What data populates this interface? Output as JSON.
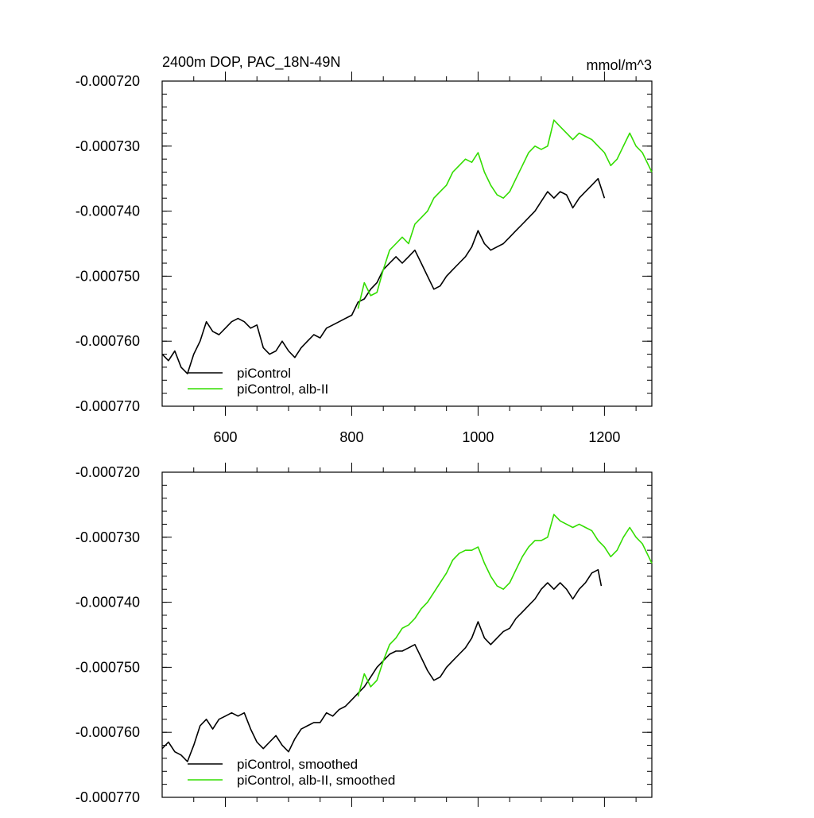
{
  "chart_data": [
    {
      "type": "line",
      "title_left": "2400m DOP, PAC_18N-49N",
      "title_right": "mmol/m^3",
      "xlim": [
        500,
        1275
      ],
      "ylim": [
        -0.00077,
        -0.00072
      ],
      "x_ticks": [
        600,
        800,
        1000,
        1200
      ],
      "x_tick_labels": [
        "600",
        "800",
        "1000",
        "1200"
      ],
      "y_ticks": [
        -0.00072,
        -0.00073,
        -0.00074,
        -0.00075,
        -0.00076,
        -0.00077
      ],
      "y_tick_labels": [
        "-0.000720",
        "-0.000730",
        "-0.000740",
        "-0.000750",
        "-0.000760",
        "-0.000770"
      ],
      "legend_position": "bottom-left",
      "series": [
        {
          "name": "piControl",
          "color": "#000000",
          "x": [
            500,
            510,
            520,
            530,
            540,
            550,
            560,
            570,
            580,
            590,
            600,
            610,
            620,
            630,
            640,
            650,
            660,
            670,
            680,
            690,
            700,
            710,
            720,
            730,
            740,
            750,
            760,
            770,
            780,
            790,
            800,
            810,
            820,
            830,
            840,
            850,
            860,
            870,
            880,
            890,
            900,
            910,
            920,
            930,
            940,
            950,
            960,
            970,
            980,
            990,
            1000,
            1010,
            1020,
            1030,
            1040,
            1050,
            1060,
            1070,
            1080,
            1090,
            1100,
            1110,
            1120,
            1130,
            1140,
            1150,
            1160,
            1170,
            1180,
            1190,
            1200
          ],
          "y": [
            -0.000762,
            -0.000763,
            -0.0007615,
            -0.000764,
            -0.000765,
            -0.000762,
            -0.00076,
            -0.000757,
            -0.0007585,
            -0.000759,
            -0.000758,
            -0.000757,
            -0.0007565,
            -0.000757,
            -0.000758,
            -0.0007575,
            -0.000761,
            -0.000762,
            -0.0007615,
            -0.00076,
            -0.0007615,
            -0.0007625,
            -0.000761,
            -0.00076,
            -0.000759,
            -0.0007595,
            -0.000758,
            -0.0007575,
            -0.000757,
            -0.0007565,
            -0.000756,
            -0.000754,
            -0.0007535,
            -0.000752,
            -0.000751,
            -0.000749,
            -0.000748,
            -0.000747,
            -0.000748,
            -0.000747,
            -0.000746,
            -0.000748,
            -0.00075,
            -0.000752,
            -0.0007515,
            -0.00075,
            -0.000749,
            -0.000748,
            -0.000747,
            -0.0007455,
            -0.000743,
            -0.000745,
            -0.000746,
            -0.0007455,
            -0.000745,
            -0.000744,
            -0.000743,
            -0.000742,
            -0.000741,
            -0.00074,
            -0.0007385,
            -0.000737,
            -0.000738,
            -0.000737,
            -0.0007375,
            -0.0007395,
            -0.000738,
            -0.000737,
            -0.000736,
            -0.000735,
            -0.000738
          ]
        },
        {
          "name": "piControl, alb-II",
          "color": "#33dd00",
          "x": [
            810,
            820,
            830,
            840,
            850,
            860,
            870,
            880,
            890,
            900,
            910,
            920,
            930,
            940,
            950,
            960,
            970,
            980,
            990,
            1000,
            1010,
            1020,
            1030,
            1040,
            1050,
            1060,
            1070,
            1080,
            1090,
            1100,
            1110,
            1120,
            1130,
            1140,
            1150,
            1160,
            1170,
            1180,
            1190,
            1200,
            1210,
            1220,
            1230,
            1240,
            1250,
            1260,
            1270,
            1275
          ],
          "y": [
            -0.000755,
            -0.000751,
            -0.000753,
            -0.0007525,
            -0.000749,
            -0.000746,
            -0.000745,
            -0.000744,
            -0.000745,
            -0.000742,
            -0.000741,
            -0.00074,
            -0.000738,
            -0.000737,
            -0.000736,
            -0.000734,
            -0.000733,
            -0.000732,
            -0.0007325,
            -0.000731,
            -0.000734,
            -0.000736,
            -0.0007375,
            -0.000738,
            -0.000737,
            -0.000735,
            -0.000733,
            -0.000731,
            -0.00073,
            -0.0007305,
            -0.00073,
            -0.000726,
            -0.000727,
            -0.000728,
            -0.000729,
            -0.000728,
            -0.0007285,
            -0.000729,
            -0.00073,
            -0.000731,
            -0.000733,
            -0.000732,
            -0.00073,
            -0.000728,
            -0.00073,
            -0.000731,
            -0.000733,
            -0.000734
          ]
        }
      ]
    },
    {
      "type": "line",
      "xlim": [
        500,
        1275
      ],
      "ylim": [
        -0.00077,
        -0.00072
      ],
      "x_ticks": [
        600,
        800,
        1000,
        1200
      ],
      "y_ticks": [
        -0.00072,
        -0.00073,
        -0.00074,
        -0.00075,
        -0.00076,
        -0.00077
      ],
      "y_tick_labels": [
        "-0.000720",
        "-0.000730",
        "-0.000740",
        "-0.000750",
        "-0.000760",
        "-0.000770"
      ],
      "legend_position": "bottom-left",
      "series": [
        {
          "name": "piControl, smoothed",
          "color": "#000000",
          "x": [
            500,
            510,
            520,
            530,
            540,
            550,
            560,
            570,
            580,
            590,
            600,
            610,
            620,
            630,
            640,
            650,
            660,
            670,
            680,
            690,
            700,
            710,
            720,
            730,
            740,
            750,
            760,
            770,
            780,
            790,
            800,
            810,
            820,
            830,
            840,
            850,
            860,
            870,
            880,
            890,
            900,
            910,
            920,
            930,
            940,
            950,
            960,
            970,
            980,
            990,
            1000,
            1010,
            1020,
            1030,
            1040,
            1050,
            1060,
            1070,
            1080,
            1090,
            1100,
            1110,
            1120,
            1130,
            1140,
            1150,
            1160,
            1170,
            1180,
            1190,
            1195
          ],
          "y": [
            -0.0007625,
            -0.0007615,
            -0.000763,
            -0.0007635,
            -0.0007645,
            -0.000762,
            -0.000759,
            -0.000758,
            -0.0007595,
            -0.000758,
            -0.0007575,
            -0.000757,
            -0.0007575,
            -0.000757,
            -0.0007595,
            -0.0007615,
            -0.0007625,
            -0.0007615,
            -0.0007605,
            -0.000762,
            -0.000763,
            -0.000761,
            -0.0007595,
            -0.000759,
            -0.0007585,
            -0.0007585,
            -0.000757,
            -0.0007575,
            -0.0007565,
            -0.000756,
            -0.000755,
            -0.000754,
            -0.000753,
            -0.0007515,
            -0.00075,
            -0.000749,
            -0.000748,
            -0.0007475,
            -0.0007475,
            -0.000747,
            -0.0007465,
            -0.0007485,
            -0.0007505,
            -0.000752,
            -0.0007515,
            -0.00075,
            -0.000749,
            -0.000748,
            -0.000747,
            -0.0007455,
            -0.000743,
            -0.0007455,
            -0.0007465,
            -0.0007455,
            -0.0007445,
            -0.000744,
            -0.0007425,
            -0.0007415,
            -0.0007405,
            -0.0007395,
            -0.000738,
            -0.000737,
            -0.000738,
            -0.000737,
            -0.000738,
            -0.0007395,
            -0.000738,
            -0.000737,
            -0.0007355,
            -0.000735,
            -0.0007375
          ]
        },
        {
          "name": "piControl, alb-II, smoothed",
          "color": "#33dd00",
          "x": [
            810,
            820,
            830,
            840,
            850,
            860,
            870,
            880,
            890,
            900,
            910,
            920,
            930,
            940,
            950,
            960,
            970,
            980,
            990,
            1000,
            1010,
            1020,
            1030,
            1040,
            1050,
            1060,
            1070,
            1080,
            1090,
            1100,
            1110,
            1120,
            1130,
            1140,
            1150,
            1160,
            1170,
            1180,
            1190,
            1200,
            1210,
            1220,
            1230,
            1240,
            1250,
            1260,
            1270,
            1275
          ],
          "y": [
            -0.0007545,
            -0.000751,
            -0.000753,
            -0.000752,
            -0.000749,
            -0.0007465,
            -0.0007455,
            -0.000744,
            -0.0007435,
            -0.0007425,
            -0.000741,
            -0.00074,
            -0.0007385,
            -0.000737,
            -0.0007355,
            -0.0007335,
            -0.0007325,
            -0.000732,
            -0.000732,
            -0.0007315,
            -0.000734,
            -0.000736,
            -0.0007375,
            -0.000738,
            -0.000737,
            -0.000735,
            -0.000733,
            -0.0007315,
            -0.0007305,
            -0.0007305,
            -0.00073,
            -0.0007265,
            -0.0007275,
            -0.000728,
            -0.0007285,
            -0.000728,
            -0.0007285,
            -0.000729,
            -0.0007305,
            -0.0007315,
            -0.000733,
            -0.000732,
            -0.00073,
            -0.0007285,
            -0.00073,
            -0.000731,
            -0.000733,
            -0.000734
          ]
        }
      ]
    }
  ]
}
